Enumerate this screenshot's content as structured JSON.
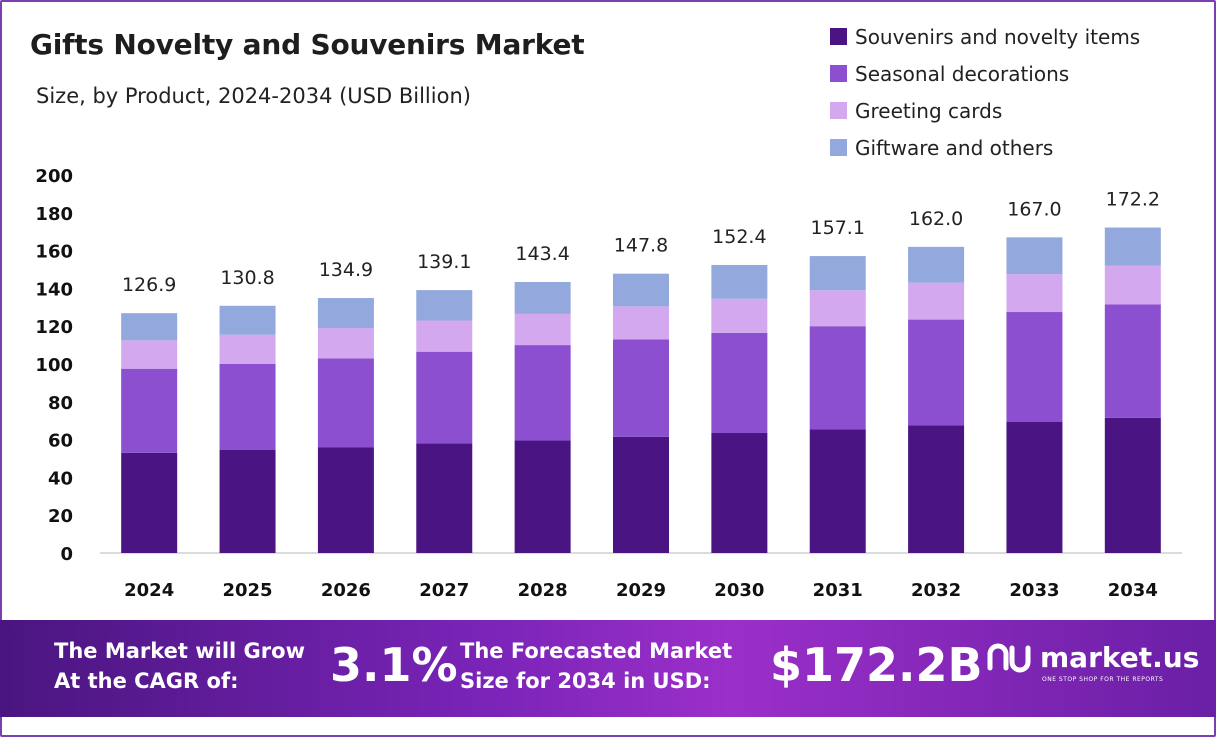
{
  "header": {
    "title": "Gifts Novelty and Souvenirs Market",
    "subtitle": "Size, by Product, 2024-2034 (USD Billion)"
  },
  "legend": [
    {
      "label": "Souvenirs and novelty items",
      "color": "#4a1582"
    },
    {
      "label": "Seasonal decorations",
      "color": "#8b4fd0"
    },
    {
      "label": "Greeting cards",
      "color": "#d3a8ee"
    },
    {
      "label": "Giftware and others",
      "color": "#93a8dc"
    }
  ],
  "chart_data": {
    "type": "bar",
    "stacked": true,
    "categories": [
      "2024",
      "2025",
      "2026",
      "2027",
      "2028",
      "2029",
      "2030",
      "2031",
      "2032",
      "2033",
      "2034"
    ],
    "series": [
      {
        "name": "Souvenirs and novelty items",
        "color": "#4a1582",
        "values": [
          53,
          54.5,
          56,
          58,
          59.5,
          61.5,
          63.5,
          65.5,
          67.5,
          69.5,
          71.5
        ]
      },
      {
        "name": "Seasonal decorations",
        "color": "#8b4fd0",
        "values": [
          44.5,
          45.5,
          47,
          48.5,
          50.5,
          51.5,
          53,
          54.5,
          56,
          58,
          60
        ]
      },
      {
        "name": "Greeting cards",
        "color": "#d3a8ee",
        "values": [
          15,
          15.5,
          16,
          16.5,
          16.5,
          17.5,
          18,
          19,
          19.5,
          20,
          20.5
        ]
      },
      {
        "name": "Giftware and others",
        "color": "#93a8dc",
        "values": [
          14.4,
          15.3,
          15.9,
          16.1,
          16.9,
          17.3,
          17.9,
          18.1,
          19,
          19.5,
          20.2
        ]
      }
    ],
    "totals": [
      "126.9",
      "130.8",
      "134.9",
      "139.1",
      "143.4",
      "147.8",
      "152.4",
      "157.1",
      "162.0",
      "167.0",
      "172.2"
    ],
    "yticks": [
      "0",
      "20",
      "40",
      "60",
      "80",
      "100",
      "120",
      "140",
      "160",
      "180",
      "200"
    ],
    "ylim": [
      0,
      200
    ],
    "grid": false
  },
  "banner": {
    "cagr_line1": "The Market will Grow",
    "cagr_line2": "At the CAGR of:",
    "cagr_value": "3.1%",
    "forecast_line1": "The Forecasted Market",
    "forecast_line2": "Size for 2034 in USD:",
    "forecast_value": "$172.2B",
    "logo_word": "market.us",
    "logo_tag": "ONE STOP SHOP FOR THE REPORTS"
  }
}
